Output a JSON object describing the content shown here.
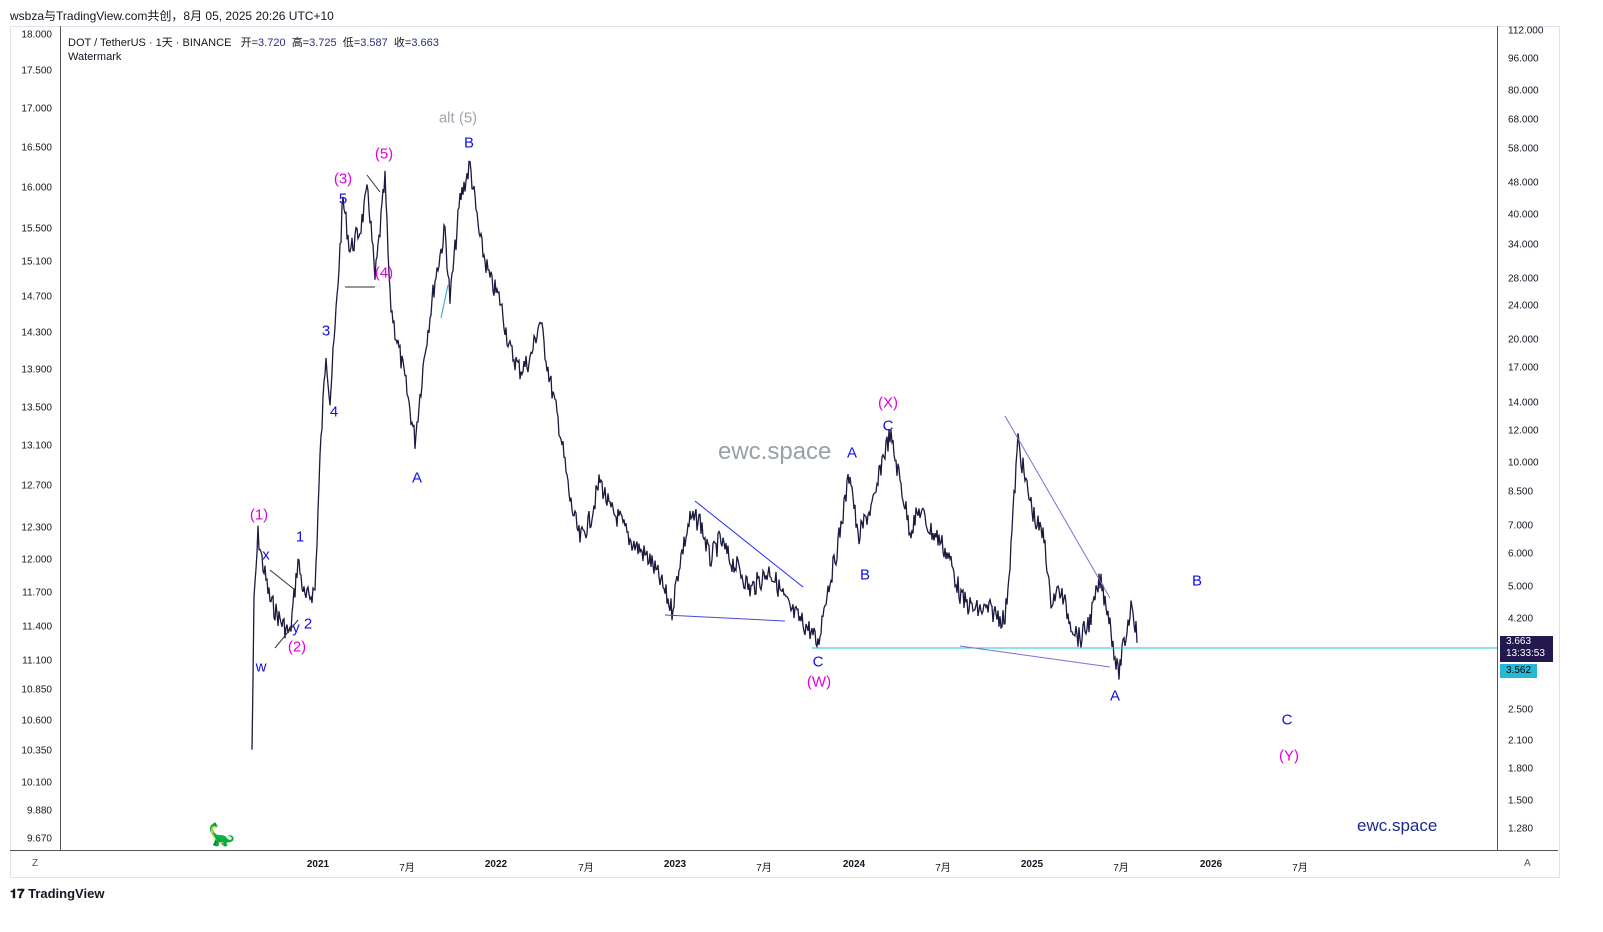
{
  "header": {
    "title": "wsbza与TradingView.com共创，8月 05, 2025 20:26 UTC+10"
  },
  "legend": {
    "symbol": "DOT / TetherUS · 1天 · BINANCE",
    "open_label": "开=",
    "open": "3.720",
    "high_label": "高=",
    "high": "3.725",
    "low_label": "低=",
    "low": "3.587",
    "close_label": "收=",
    "close": "3.663",
    "watermark": "Watermark"
  },
  "left_axis": [
    "18.000",
    "17.500",
    "17.000",
    "16.500",
    "16.000",
    "15.500",
    "15.100",
    "14.700",
    "14.300",
    "13.900",
    "13.500",
    "13.100",
    "12.700",
    "12.300",
    "12.000",
    "11.700",
    "11.400",
    "11.100",
    "10.850",
    "10.600",
    "10.350",
    "10.100",
    "9.880",
    "9.670"
  ],
  "right_axis": [
    "112.000",
    "96.000",
    "80.000",
    "68.000",
    "58.000",
    "48.000",
    "40.000",
    "34.000",
    "28.000",
    "24.000",
    "20.000",
    "17.000",
    "14.000",
    "12.000",
    "10.000",
    "8.500",
    "7.000",
    "6.000",
    "5.000",
    "4.200",
    "2.500",
    "2.100",
    "1.800",
    "1.500",
    "1.280"
  ],
  "time_axis": [
    "2021",
    "7月",
    "2022",
    "7月",
    "2023",
    "7月",
    "2024",
    "7月",
    "2025",
    "7月",
    "2026",
    "7月"
  ],
  "price_tag": {
    "price": "3.663",
    "countdown": "13:33:53",
    "low": "3.562"
  },
  "wave_labels": [
    {
      "text": "(1)",
      "color": "#e000e0"
    },
    {
      "text": "(2)",
      "color": "#e000e0"
    },
    {
      "text": "(3)",
      "color": "#e000e0"
    },
    {
      "text": "(4)",
      "color": "#e000e0"
    },
    {
      "text": "(5)",
      "color": "#e000e0"
    },
    {
      "text": "alt (5)",
      "color": "#a0a4ab"
    },
    {
      "text": "B",
      "color": "#1010e0"
    },
    {
      "text": "w",
      "color": "#1010e0"
    },
    {
      "text": "x",
      "color": "#1010e0"
    },
    {
      "text": "y",
      "color": "#1010e0"
    },
    {
      "text": "1",
      "color": "#1010e0"
    },
    {
      "text": "2",
      "color": "#1010e0"
    },
    {
      "text": "3",
      "color": "#1010e0"
    },
    {
      "text": "4",
      "color": "#1010e0"
    },
    {
      "text": "5",
      "color": "#1010e0"
    },
    {
      "text": "A",
      "color": "#1010e0"
    },
    {
      "text": "C",
      "color": "#1010e0"
    },
    {
      "text": "(W)",
      "color": "#e000e0"
    },
    {
      "text": "A",
      "color": "#1010e0"
    },
    {
      "text": "B",
      "color": "#1010e0"
    },
    {
      "text": "C",
      "color": "#1010e0"
    },
    {
      "text": "(X)",
      "color": "#e000e0"
    },
    {
      "text": "A",
      "color": "#1010e0"
    },
    {
      "text": "B",
      "color": "#1010e0"
    },
    {
      "text": "C",
      "color": "#1010e0"
    },
    {
      "text": "(Y)",
      "color": "#e000e0"
    }
  ],
  "watermarks": {
    "center": "ewc.space",
    "bottom": "ewc.space"
  },
  "corners": {
    "left": "Z",
    "right": "A"
  },
  "footer": {
    "brand": "TradingView"
  },
  "colors": {
    "candles": "#1c1a3f",
    "hline": "#26c6da",
    "trend": "#7b6fd6"
  }
}
